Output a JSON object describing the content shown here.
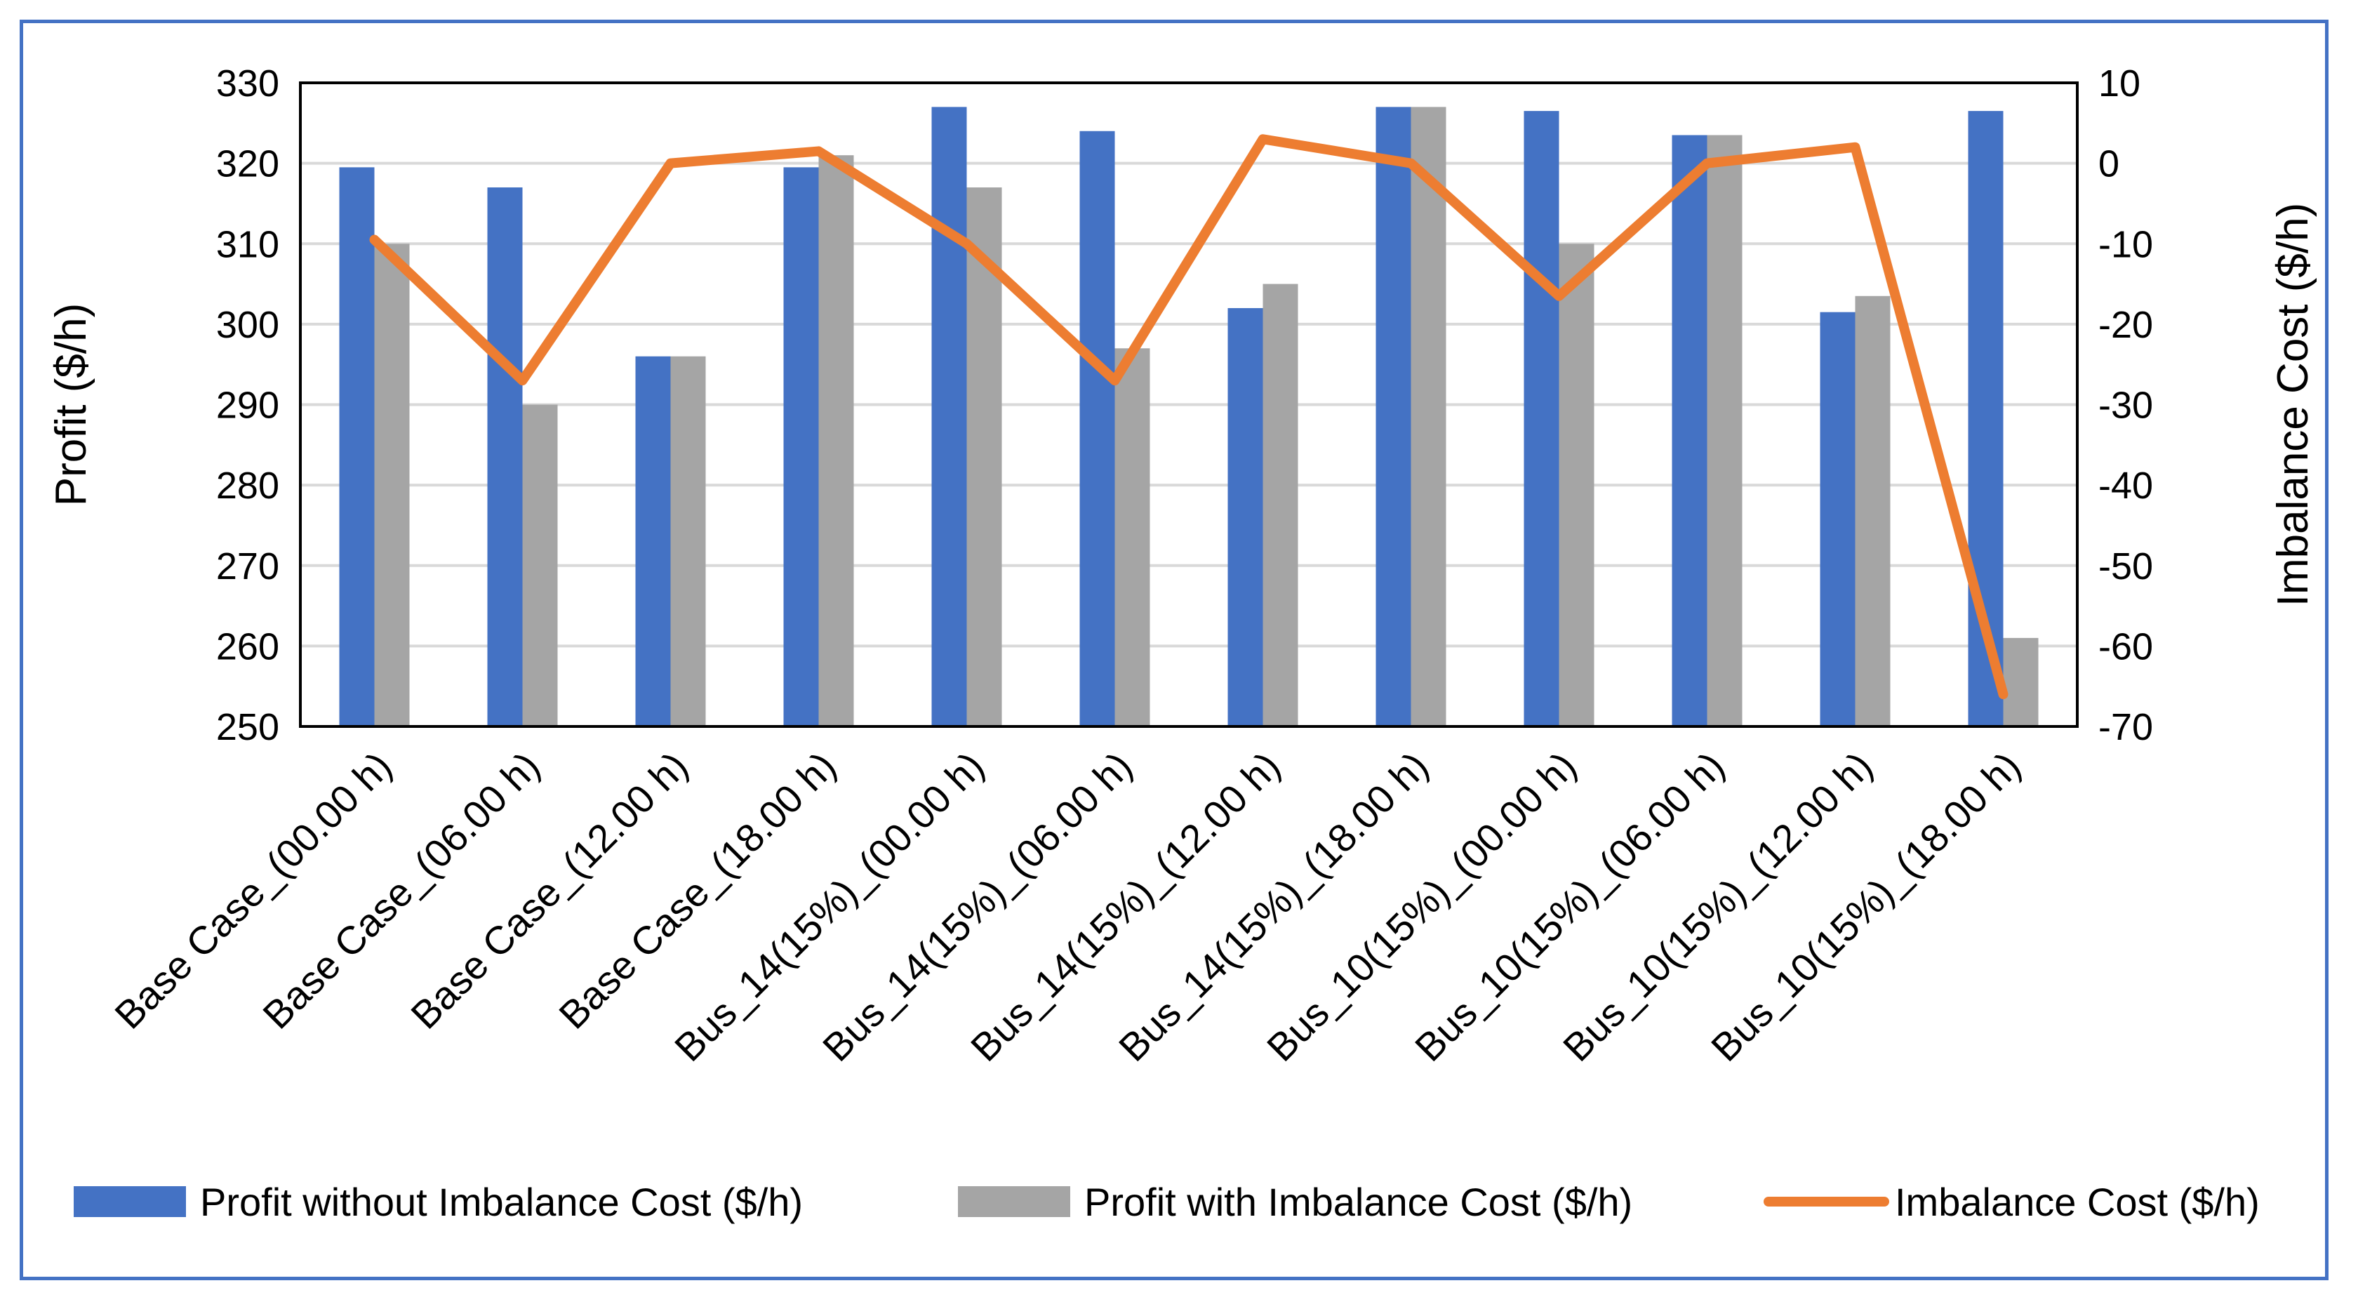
{
  "chart_data": {
    "type": "bar",
    "title": "",
    "categories": [
      "Base Case_(00.00 h)",
      "Base Case_(06.00 h)",
      "Base Case_(12.00 h)",
      "Base Case_(18.00 h)",
      "Bus_14(15%)_(00.00 h)",
      "Bus_14(15%)_(06.00 h)",
      "Bus_14(15%)_(12.00 h)",
      "Bus_14(15%)_(18.00 h)",
      "Bus_10(15%)_(00.00 h)",
      "Bus_10(15%)_(06.00 h)",
      "Bus_10(15%)_(12.00 h)",
      "Bus_10(15%)_(18.00 h)"
    ],
    "series": [
      {
        "name": "Profit without Imbalance Cost ($/h)",
        "type": "bar",
        "axis": "left",
        "color": "#4472c4",
        "values": [
          319.5,
          317,
          296,
          319.5,
          327,
          324,
          302,
          327,
          326.5,
          323.5,
          301.5,
          326.5
        ]
      },
      {
        "name": "Profit with Imbalance Cost ($/h)",
        "type": "bar",
        "axis": "left",
        "color": "#a5a5a5",
        "values": [
          310,
          290,
          296,
          321,
          317,
          297,
          305,
          327,
          310,
          323.5,
          303.5,
          261
        ]
      },
      {
        "name": "Imbalance Cost ($/h)",
        "type": "line",
        "axis": "right",
        "color": "#ed7d31",
        "values": [
          -9.5,
          -27,
          0,
          1.5,
          -10,
          -27,
          3,
          0,
          -16.5,
          0,
          2,
          -66
        ]
      }
    ],
    "ylabel": "Profit ($/h)",
    "ylim": [
      250,
      330
    ],
    "yticks": [
      "250",
      "260",
      "270",
      "280",
      "290",
      "300",
      "310",
      "320",
      "330"
    ],
    "y2label": "Imbalance Cost ($/h)",
    "y2lim": [
      -70,
      10
    ],
    "y2ticks": [
      "-70",
      "-60",
      "-50",
      "-40",
      "-30",
      "-20",
      "-10",
      "0",
      "10"
    ],
    "grid": true,
    "legend_position": "bottom"
  }
}
